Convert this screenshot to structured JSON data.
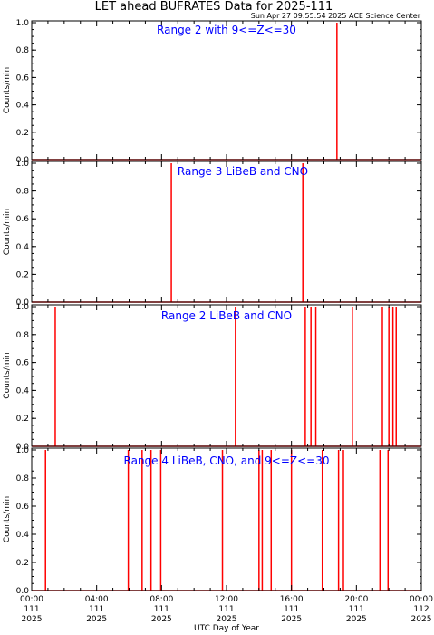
{
  "title": "LET ahead BUFRATES Data for 2025-111",
  "timestamp": "Sun Apr 27 09:55:54 2025 ACE Science Center",
  "xlabel": "UTC Day of Year",
  "colors": {
    "trace": "#ff0000",
    "panel_label": "#0000ff",
    "axes": "#000000"
  },
  "x_ticks": [
    {
      "time": "00:00",
      "day": "111",
      "year": "2025"
    },
    {
      "time": "04:00",
      "day": "111",
      "year": "2025"
    },
    {
      "time": "08:00",
      "day": "111",
      "year": "2025"
    },
    {
      "time": "12:00",
      "day": "111",
      "year": "2025"
    },
    {
      "time": "16:00",
      "day": "111",
      "year": "2025"
    },
    {
      "time": "20:00",
      "day": "111",
      "year": "2025"
    },
    {
      "time": "00:00",
      "day": "112",
      "year": "2025"
    }
  ],
  "chart_data": [
    {
      "type": "line",
      "label": "Range 2 with 9<=Z<=30",
      "ylabel": "Counts/min",
      "xlim": [
        0,
        24
      ],
      "ylim": [
        0,
        1.0
      ],
      "y_ticks": [
        "0.0",
        "0.2",
        "0.4",
        "0.6",
        "0.8",
        "1.0"
      ],
      "x_unit": "hours UTC",
      "spikes": [
        {
          "x": 18.8,
          "y": 1.0
        }
      ]
    },
    {
      "type": "line",
      "label": "Range 3 LiBeB and CNO",
      "ylabel": "Counts/min",
      "xlim": [
        0,
        24
      ],
      "ylim": [
        0,
        1.0
      ],
      "y_ticks": [
        "0.0",
        "0.2",
        "0.4",
        "0.6",
        "0.8",
        "1.0"
      ],
      "x_unit": "hours UTC",
      "spikes": [
        {
          "x": 8.6,
          "y": 1.0
        },
        {
          "x": 16.7,
          "y": 1.0
        }
      ]
    },
    {
      "type": "line",
      "label": "Range 2 LiBeB and CNO",
      "ylabel": "Counts/min",
      "xlim": [
        0,
        24
      ],
      "ylim": [
        0,
        1.0
      ],
      "y_ticks": [
        "0.0",
        "0.2",
        "0.4",
        "0.6",
        "0.8",
        "1.0"
      ],
      "x_unit": "hours UTC",
      "spikes": [
        {
          "x": 1.45,
          "y": 1.0
        },
        {
          "x": 12.55,
          "y": 1.0
        },
        {
          "x": 16.85,
          "y": 1.0
        },
        {
          "x": 17.2,
          "y": 1.0
        },
        {
          "x": 17.5,
          "y": 1.0
        },
        {
          "x": 19.75,
          "y": 1.0
        },
        {
          "x": 21.6,
          "y": 1.0
        },
        {
          "x": 22.0,
          "y": 1.0
        },
        {
          "x": 22.25,
          "y": 1.0
        },
        {
          "x": 22.45,
          "y": 1.0
        }
      ]
    },
    {
      "type": "line",
      "label": "Range 4 LiBeB, CNO, and 9<=Z<=30",
      "ylabel": "Counts/min",
      "xlim": [
        0,
        24
      ],
      "ylim": [
        0,
        1.0
      ],
      "y_ticks": [
        "0.0",
        "0.2",
        "0.4",
        "0.6",
        "0.8",
        "1.0"
      ],
      "x_unit": "hours UTC",
      "spikes": [
        {
          "x": 0.85,
          "y": 1.0
        },
        {
          "x": 5.95,
          "y": 1.0
        },
        {
          "x": 6.8,
          "y": 1.0
        },
        {
          "x": 7.35,
          "y": 1.0
        },
        {
          "x": 7.95,
          "y": 1.0
        },
        {
          "x": 11.75,
          "y": 1.0
        },
        {
          "x": 14.0,
          "y": 1.0
        },
        {
          "x": 14.2,
          "y": 1.0
        },
        {
          "x": 14.75,
          "y": 1.0
        },
        {
          "x": 16.0,
          "y": 1.0
        },
        {
          "x": 17.9,
          "y": 1.0
        },
        {
          "x": 18.9,
          "y": 1.0
        },
        {
          "x": 19.2,
          "y": 1.0
        },
        {
          "x": 21.45,
          "y": 1.0
        },
        {
          "x": 21.95,
          "y": 1.0
        }
      ]
    }
  ]
}
